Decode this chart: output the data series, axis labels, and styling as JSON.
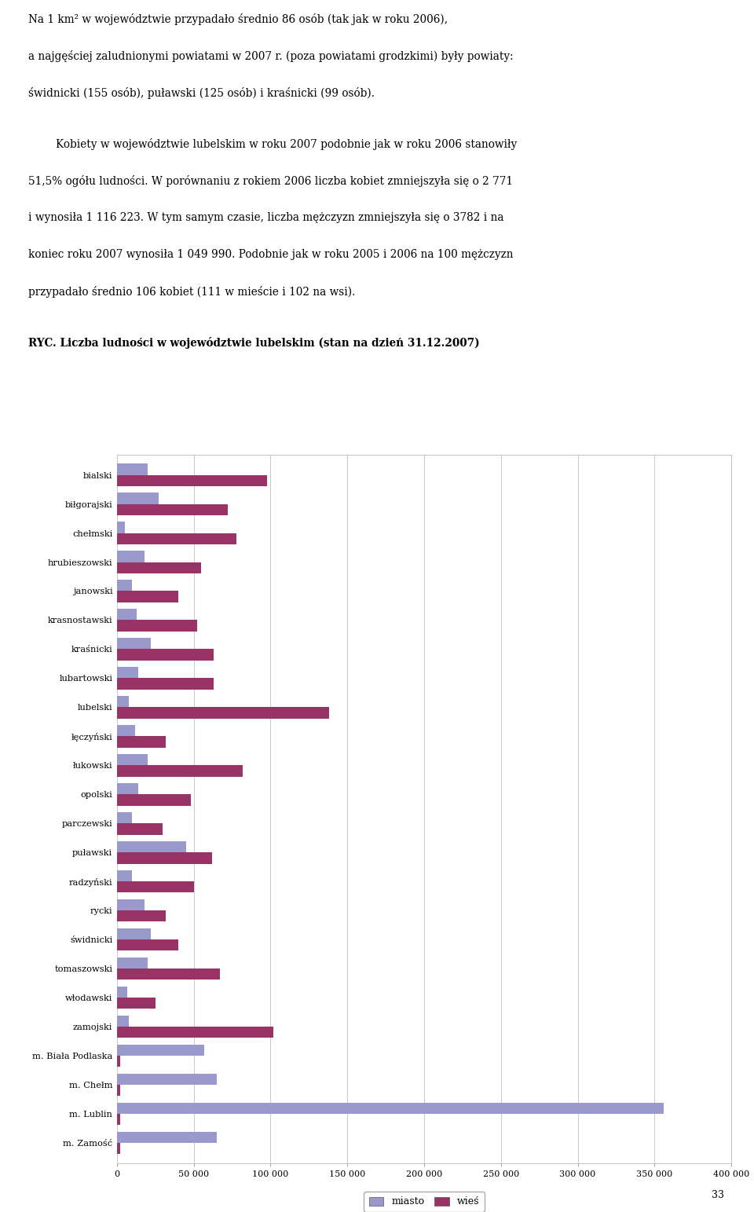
{
  "categories": [
    "bialski",
    "biłgorajski",
    "chełmski",
    "hrubieszowski",
    "janowski",
    "krasnostawski",
    "kraśnicki",
    "lubartowski",
    "lubelski",
    "łęczyński",
    "łukowski",
    "opolski",
    "parczewski",
    "puławski",
    "radzyński",
    "rycki",
    "świdnicki",
    "tomaszowski",
    "włodawski",
    "zamojski",
    "m. Biała Podlaska",
    "m. Chełm",
    "m. Lublin",
    "m. Zamość"
  ],
  "miasto": [
    20000,
    27000,
    5000,
    18000,
    10000,
    13000,
    22000,
    14000,
    8000,
    12000,
    20000,
    14000,
    10000,
    45000,
    10000,
    18000,
    22000,
    20000,
    7000,
    8000,
    57000,
    65000,
    356000,
    65000
  ],
  "wies": [
    98000,
    72000,
    78000,
    55000,
    40000,
    52000,
    63000,
    63000,
    138000,
    32000,
    82000,
    48000,
    30000,
    62000,
    50000,
    32000,
    40000,
    67000,
    25000,
    102000,
    2000,
    2000,
    2000,
    2000
  ],
  "miasto_color": "#9999cc",
  "wies_color": "#993366",
  "background_color": "#ffffff",
  "grid_color": "#cccccc",
  "xlim": [
    0,
    400000
  ],
  "xticks": [
    0,
    50000,
    100000,
    150000,
    200000,
    250000,
    300000,
    350000,
    400000
  ],
  "xtick_labels": [
    "0",
    "50 000",
    "100 000",
    "150 000",
    "200 000",
    "250 000",
    "300 000",
    "350 000",
    "400 000"
  ],
  "legend_miasto": "miasto",
  "legend_wies": "wieś",
  "bar_height": 0.38
}
